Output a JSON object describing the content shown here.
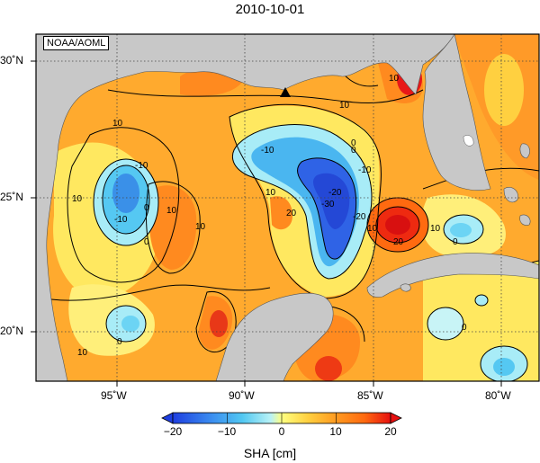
{
  "title": "2010-10-01",
  "credit": "NOAA/AOML",
  "colorbar": {
    "label": "SHA [cm]",
    "ticks": [
      "−20",
      "−10",
      "0",
      "10",
      "20"
    ],
    "range": [
      -20,
      20
    ]
  },
  "axes": {
    "lon_labels": [
      "95˚W",
      "90˚W",
      "85˚W",
      "80˚W"
    ],
    "lat_labels": [
      "30˚N",
      "25˚N",
      "20˚N"
    ],
    "lon_range": [
      -98,
      -77
    ],
    "lat_range": [
      18,
      31
    ],
    "grid": "dotted"
  },
  "contour_labels": [
    "10",
    "10",
    "0",
    "-10",
    "-10",
    "0",
    "10",
    "10",
    "0",
    "10",
    "10",
    "20",
    "-10",
    "0",
    "-10",
    "-20",
    "-30",
    "10",
    "-20",
    "20",
    "10",
    "0",
    "0",
    "10",
    "0",
    "10"
  ],
  "colors": {
    "land": "#c8c8c8",
    "deep_negative": "#2f63e6",
    "negative": "#55b8f0",
    "light_negative": "#a8ecf7",
    "zero": "#ffff7f",
    "positive": "#ffc23a",
    "strong_positive": "#ff8a1f",
    "max_positive": "#e81818"
  }
}
